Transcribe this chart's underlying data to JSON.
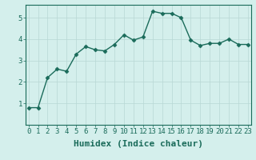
{
  "x": [
    0,
    1,
    2,
    3,
    4,
    5,
    6,
    7,
    8,
    9,
    10,
    11,
    12,
    13,
    14,
    15,
    16,
    17,
    18,
    19,
    20,
    21,
    22,
    23
  ],
  "y": [
    0.8,
    0.8,
    2.2,
    2.6,
    2.5,
    3.3,
    3.65,
    3.5,
    3.45,
    3.75,
    4.2,
    3.95,
    4.1,
    5.3,
    5.2,
    5.2,
    5.0,
    3.95,
    3.7,
    3.8,
    3.8,
    4.0,
    3.75,
    3.75
  ],
  "xlabel": "Humidex (Indice chaleur)",
  "ylim": [
    0,
    5.6
  ],
  "xlim": [
    -0.3,
    23.3
  ],
  "yticks": [
    1,
    2,
    3,
    4,
    5
  ],
  "xticks": [
    0,
    1,
    2,
    3,
    4,
    5,
    6,
    7,
    8,
    9,
    10,
    11,
    12,
    13,
    14,
    15,
    16,
    17,
    18,
    19,
    20,
    21,
    22,
    23
  ],
  "line_color": "#1a6b5a",
  "bg_color": "#d4efec",
  "grid_color": "#b8d8d4",
  "marker": "D",
  "marker_size": 2.5,
  "line_width": 1.0,
  "xlabel_fontsize": 8,
  "tick_fontsize": 6.5
}
